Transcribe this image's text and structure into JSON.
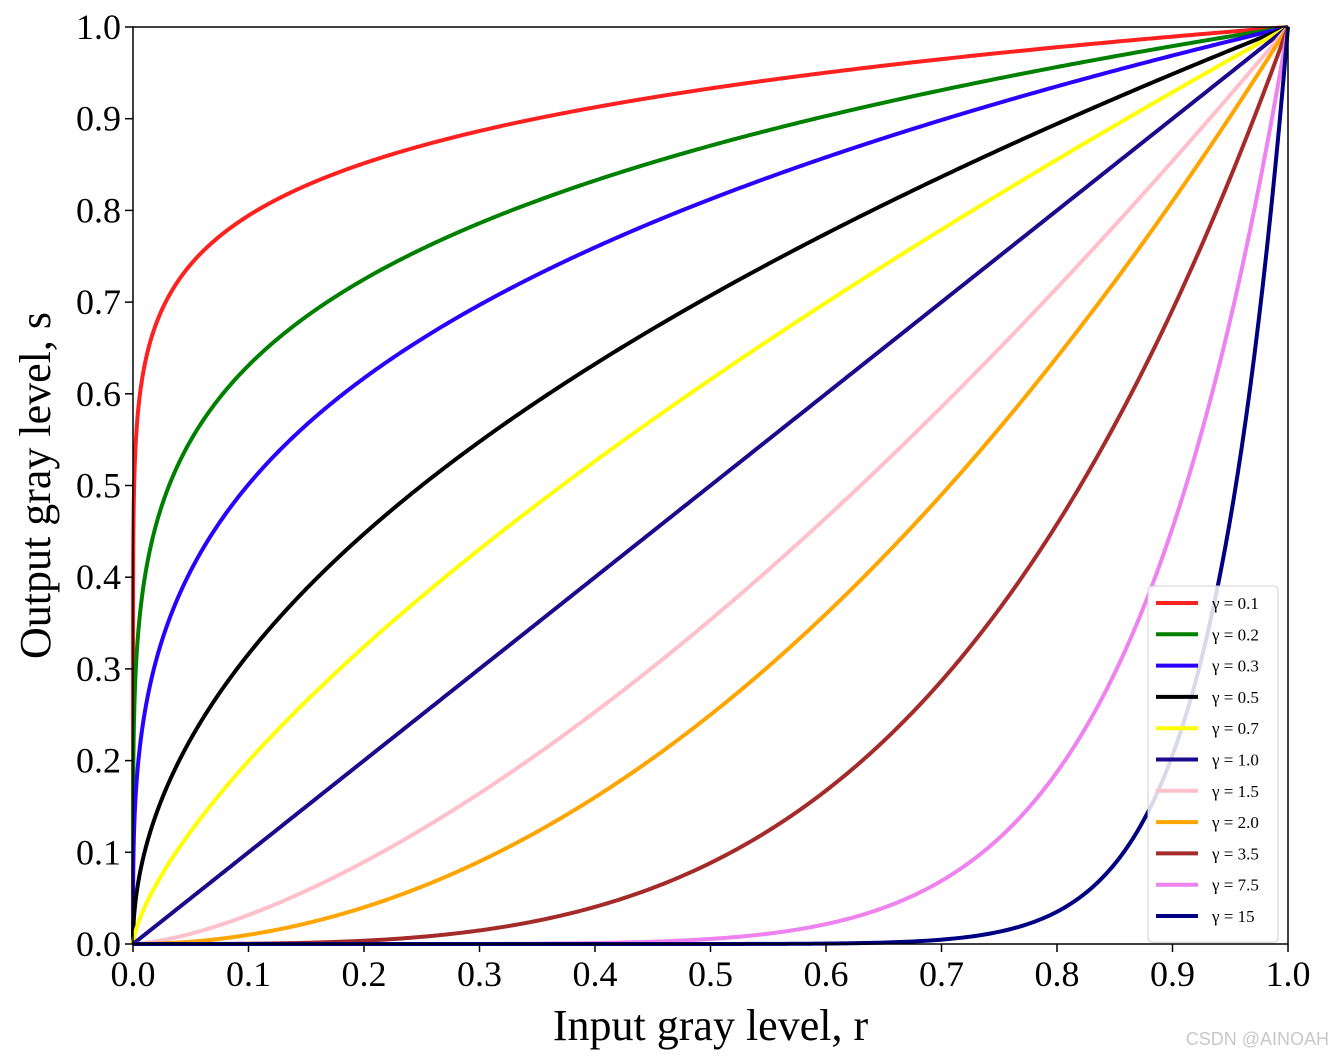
{
  "chart_data": {
    "type": "line",
    "title": "",
    "xlabel": "Input gray level, r",
    "ylabel": "Output gray level, s",
    "xlim": [
      0,
      1
    ],
    "ylim": [
      0,
      1
    ],
    "x_ticks": [
      "0.0",
      "0.1",
      "0.2",
      "0.3",
      "0.4",
      "0.5",
      "0.6",
      "0.7",
      "0.8",
      "0.9",
      "1.0"
    ],
    "y_ticks": [
      "0.0",
      "0.1",
      "0.2",
      "0.3",
      "0.4",
      "0.5",
      "0.6",
      "0.7",
      "0.8",
      "0.9",
      "1.0"
    ],
    "function": "s = r^gamma",
    "grid": false,
    "legend_position": "lower-right",
    "series": [
      {
        "name": "γ = 0.1",
        "gamma": 0.1,
        "color": "#ff2020"
      },
      {
        "name": "γ = 0.2",
        "gamma": 0.2,
        "color": "#008000"
      },
      {
        "name": "γ = 0.3",
        "gamma": 0.3,
        "color": "#2a00ff"
      },
      {
        "name": "γ = 0.5",
        "gamma": 0.5,
        "color": "#000000"
      },
      {
        "name": "γ = 0.7",
        "gamma": 0.7,
        "color": "#ffff00"
      },
      {
        "name": "γ = 1.0",
        "gamma": 1.0,
        "color": "#1a0a8c"
      },
      {
        "name": "γ = 1.5",
        "gamma": 1.5,
        "color": "#ffc0cb"
      },
      {
        "name": "γ = 2.0",
        "gamma": 2.0,
        "color": "#ffa500"
      },
      {
        "name": "γ = 3.5",
        "gamma": 3.5,
        "color": "#a52a2a"
      },
      {
        "name": "γ = 7.5",
        "gamma": 7.5,
        "color": "#ee82ee"
      },
      {
        "name": "γ = 15",
        "gamma": 15,
        "color": "#000080"
      }
    ]
  },
  "watermark": "CSDN @AINOAH"
}
